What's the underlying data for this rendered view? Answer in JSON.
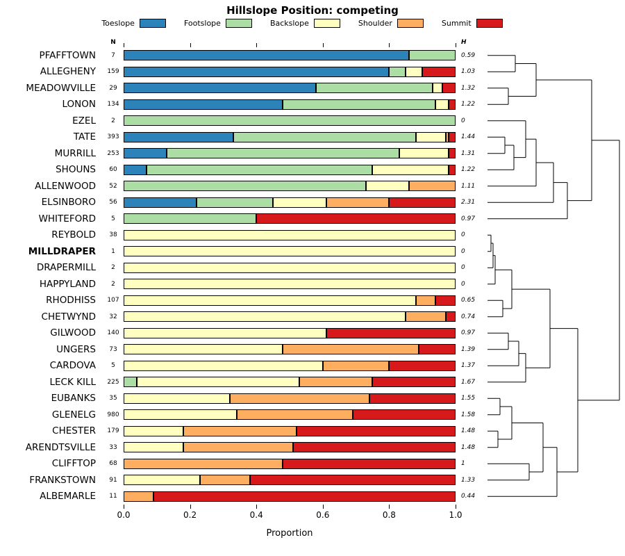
{
  "chart_data": {
    "type": "bar",
    "orientation": "horizontal-stacked",
    "title": "Hillslope Position: competing",
    "xlabel": "Proportion",
    "xlim": [
      0,
      1
    ],
    "x_ticks": [
      0.0,
      0.2,
      0.4,
      0.6,
      0.8,
      1.0
    ],
    "x_tick_labels": [
      "0.0",
      "0.2",
      "0.4",
      "0.6",
      "0.8",
      "1.0"
    ],
    "col_headers": {
      "n": "N",
      "h": "H"
    },
    "legend_position": "top",
    "grid": false,
    "legend": [
      {
        "label": "Toeslope",
        "color": "#2B83BA"
      },
      {
        "label": "Footslope",
        "color": "#ABDDA4"
      },
      {
        "label": "Backslope",
        "color": "#FFFFBF"
      },
      {
        "label": "Shoulder",
        "color": "#FDAE61"
      },
      {
        "label": "Summit",
        "color": "#D7191C"
      }
    ],
    "rows": [
      {
        "label": "PFAFFTOWN",
        "n": "7",
        "h": "0.59",
        "values": [
          0.86,
          0.14,
          0,
          0,
          0
        ]
      },
      {
        "label": "ALLEGHENY",
        "n": "159",
        "h": "1.03",
        "values": [
          0.8,
          0.05,
          0.05,
          0,
          0.1
        ]
      },
      {
        "label": "MEADOWVILLE",
        "n": "29",
        "h": "1.32",
        "values": [
          0.58,
          0.35,
          0.03,
          0,
          0.04
        ]
      },
      {
        "label": "LONON",
        "n": "134",
        "h": "1.22",
        "values": [
          0.48,
          0.46,
          0.04,
          0,
          0.02
        ]
      },
      {
        "label": "EZEL",
        "n": "2",
        "h": "0",
        "values": [
          0,
          1.0,
          0,
          0,
          0
        ]
      },
      {
        "label": "TATE",
        "n": "393",
        "h": "1.44",
        "values": [
          0.33,
          0.55,
          0.09,
          0.01,
          0.02
        ]
      },
      {
        "label": "MURRILL",
        "n": "253",
        "h": "1.31",
        "values": [
          0.13,
          0.7,
          0.15,
          0,
          0.02
        ]
      },
      {
        "label": "SHOUNS",
        "n": "60",
        "h": "1.22",
        "values": [
          0.07,
          0.68,
          0.23,
          0,
          0.02
        ]
      },
      {
        "label": "ALLENWOOD",
        "n": "52",
        "h": "1.11",
        "values": [
          0,
          0.73,
          0.13,
          0.14,
          0
        ]
      },
      {
        "label": "ELSINBORO",
        "n": "56",
        "h": "2.31",
        "values": [
          0.22,
          0.23,
          0.16,
          0.19,
          0.2
        ]
      },
      {
        "label": "WHITEFORD",
        "n": "5",
        "h": "0.97",
        "values": [
          0,
          0.4,
          0,
          0,
          0.6
        ]
      },
      {
        "label": "REYBOLD",
        "n": "38",
        "h": "0",
        "values": [
          0,
          0,
          1.0,
          0,
          0
        ]
      },
      {
        "label": "MILLDRAPER",
        "n": "1",
        "h": "0",
        "bold": true,
        "values": [
          0,
          0,
          1.0,
          0,
          0
        ]
      },
      {
        "label": "DRAPERMILL",
        "n": "2",
        "h": "0",
        "values": [
          0,
          0,
          1.0,
          0,
          0
        ]
      },
      {
        "label": "HAPPYLAND",
        "n": "2",
        "h": "0",
        "values": [
          0,
          0,
          1.0,
          0,
          0
        ]
      },
      {
        "label": "RHODHISS",
        "n": "107",
        "h": "0.65",
        "values": [
          0,
          0,
          0.88,
          0.06,
          0.06
        ]
      },
      {
        "label": "CHETWYND",
        "n": "32",
        "h": "0.74",
        "values": [
          0,
          0,
          0.85,
          0.12,
          0.03
        ]
      },
      {
        "label": "GILWOOD",
        "n": "140",
        "h": "0.97",
        "values": [
          0,
          0,
          0.61,
          0,
          0.39
        ]
      },
      {
        "label": "UNGERS",
        "n": "73",
        "h": "1.39",
        "values": [
          0,
          0,
          0.48,
          0.41,
          0.11
        ]
      },
      {
        "label": "CARDOVA",
        "n": "5",
        "h": "1.37",
        "values": [
          0,
          0,
          0.6,
          0.2,
          0.2
        ]
      },
      {
        "label": "LECK KILL",
        "n": "225",
        "h": "1.67",
        "values": [
          0,
          0.04,
          0.49,
          0.22,
          0.25
        ]
      },
      {
        "label": "EUBANKS",
        "n": "35",
        "h": "1.55",
        "values": [
          0,
          0,
          0.32,
          0.42,
          0.26
        ]
      },
      {
        "label": "GLENELG",
        "n": "980",
        "h": "1.58",
        "values": [
          0,
          0,
          0.34,
          0.35,
          0.31
        ]
      },
      {
        "label": "CHESTER",
        "n": "179",
        "h": "1.48",
        "values": [
          0,
          0,
          0.18,
          0.34,
          0.48
        ]
      },
      {
        "label": "ARENDTSVILLE",
        "n": "33",
        "h": "1.48",
        "values": [
          0,
          0,
          0.18,
          0.33,
          0.49
        ]
      },
      {
        "label": "CLIFFTOP",
        "n": "68",
        "h": "1",
        "values": [
          0,
          0,
          0,
          0.48,
          0.52
        ]
      },
      {
        "label": "FRANKSTOWN",
        "n": "91",
        "h": "1.33",
        "values": [
          0,
          0,
          0.23,
          0.15,
          0.62
        ]
      },
      {
        "label": "ALBEMARLE",
        "n": "11",
        "h": "0.44",
        "values": [
          0,
          0,
          0,
          0.09,
          0.91
        ]
      }
    ],
    "dendrogram": {
      "description": "hierarchical clustering of series, drawn right of bars, leaves aligned to rows",
      "segments": [
        [
          2,
          11.75,
          42,
          11.75
        ],
        [
          2,
          35.25,
          42,
          35.25
        ],
        [
          42,
          11.75,
          42,
          35.25
        ],
        [
          2,
          58.75,
          32,
          58.75
        ],
        [
          2,
          82.25,
          32,
          82.25
        ],
        [
          32,
          58.75,
          32,
          82.25
        ],
        [
          42,
          23.5,
          72,
          23.5
        ],
        [
          32,
          70.5,
          72,
          70.5
        ],
        [
          72,
          23.5,
          72,
          70.5
        ],
        [
          2,
          129.25,
          27,
          129.25
        ],
        [
          2,
          152.75,
          27,
          152.75
        ],
        [
          27,
          129.25,
          27,
          152.75
        ],
        [
          27,
          141,
          40,
          141
        ],
        [
          2,
          176.25,
          40,
          176.25
        ],
        [
          40,
          141,
          40,
          176.25
        ],
        [
          2,
          105.75,
          57,
          105.75
        ],
        [
          40,
          158.63,
          57,
          158.63
        ],
        [
          57,
          105.75,
          57,
          158.63
        ],
        [
          57,
          132.19,
          72,
          132.19
        ],
        [
          2,
          199.75,
          72,
          199.75
        ],
        [
          72,
          132.19,
          72,
          199.75
        ],
        [
          72,
          165.97,
          97,
          165.97
        ],
        [
          2,
          223.25,
          97,
          223.25
        ],
        [
          97,
          165.97,
          97,
          223.25
        ],
        [
          97,
          194.61,
          117,
          194.61
        ],
        [
          2,
          246.75,
          117,
          246.75
        ],
        [
          117,
          194.61,
          117,
          246.75
        ],
        [
          72,
          47,
          152,
          47
        ],
        [
          117,
          220.68,
          152,
          220.68
        ],
        [
          152,
          47,
          152,
          220.68
        ],
        [
          2,
          270.25,
          7,
          270.25
        ],
        [
          2,
          293.75,
          7,
          293.75
        ],
        [
          7,
          270.25,
          7,
          293.75
        ],
        [
          7,
          282,
          10,
          282
        ],
        [
          2,
          317.25,
          10,
          317.25
        ],
        [
          10,
          282,
          10,
          317.25
        ],
        [
          10,
          299.63,
          13,
          299.63
        ],
        [
          2,
          340.75,
          13,
          340.75
        ],
        [
          13,
          299.63,
          13,
          340.75
        ],
        [
          2,
          364.25,
          24,
          364.25
        ],
        [
          2,
          387.75,
          24,
          387.75
        ],
        [
          24,
          364.25,
          24,
          387.75
        ],
        [
          13,
          320.19,
          37,
          320.19
        ],
        [
          24,
          376,
          37,
          376
        ],
        [
          37,
          320.19,
          37,
          376
        ],
        [
          2,
          411.25,
          32,
          411.25
        ],
        [
          2,
          434.75,
          32,
          434.75
        ],
        [
          32,
          411.25,
          32,
          434.75
        ],
        [
          32,
          423,
          47,
          423
        ],
        [
          2,
          458.25,
          47,
          458.25
        ],
        [
          47,
          423,
          47,
          458.25
        ],
        [
          47,
          440.63,
          57,
          440.63
        ],
        [
          2,
          481.75,
          57,
          481.75
        ],
        [
          57,
          440.63,
          57,
          481.75
        ],
        [
          37,
          348.09,
          92,
          348.09
        ],
        [
          57,
          461.19,
          92,
          461.19
        ],
        [
          92,
          348.09,
          92,
          461.19
        ],
        [
          2,
          505.25,
          20,
          505.25
        ],
        [
          2,
          528.75,
          20,
          528.75
        ],
        [
          20,
          505.25,
          20,
          528.75
        ],
        [
          2,
          552.25,
          17,
          552.25
        ],
        [
          2,
          575.75,
          17,
          575.75
        ],
        [
          17,
          552.25,
          17,
          575.75
        ],
        [
          20,
          517,
          37,
          517
        ],
        [
          17,
          564,
          37,
          564
        ],
        [
          37,
          517,
          37,
          564
        ],
        [
          2,
          599.25,
          62,
          599.25
        ],
        [
          2,
          622.75,
          62,
          622.75
        ],
        [
          62,
          599.25,
          62,
          622.75
        ],
        [
          37,
          540.5,
          82,
          540.5
        ],
        [
          62,
          611,
          82,
          611
        ],
        [
          82,
          540.5,
          82,
          611
        ],
        [
          82,
          575.75,
          102,
          575.75
        ],
        [
          2,
          646.25,
          102,
          646.25
        ],
        [
          102,
          575.75,
          102,
          646.25
        ],
        [
          92,
          404.64,
          132,
          404.64
        ],
        [
          102,
          611,
          132,
          611
        ],
        [
          132,
          404.64,
          132,
          611
        ],
        [
          152,
          133.84,
          192,
          133.84
        ],
        [
          132,
          507.82,
          192,
          507.82
        ],
        [
          192,
          133.84,
          192,
          507.82
        ]
      ]
    }
  }
}
